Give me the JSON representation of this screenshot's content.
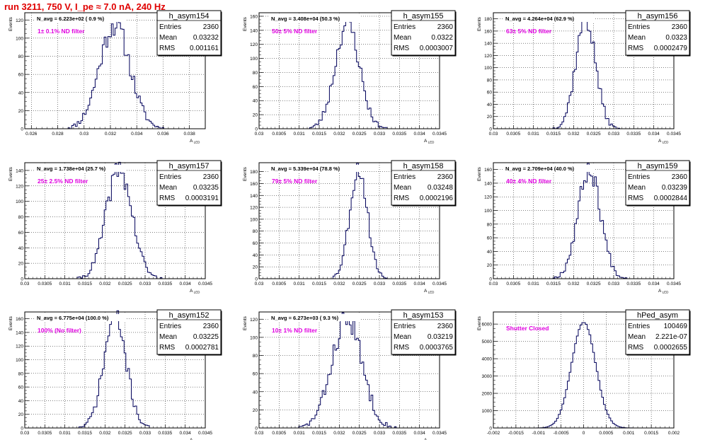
{
  "page": {
    "title": "run 3211,   750 V, I_pe ≈ 7.0 nA, 240 Hz"
  },
  "style": {
    "hist_color": "#00005a",
    "stats_box_fill": "#ffffff",
    "frame_color": "#000000",
    "filter_label_color": "#e000e0",
    "title_color": "#e00000",
    "grid": true
  },
  "chart_data": [
    {
      "type": "histogram",
      "hist_name": "h_asym154",
      "navg": "N_avg = 6.223e+02 ( 0.9 %)",
      "filter": "1± 0.1% ND filter",
      "entries": "2360",
      "mean": "0.03232",
      "rms": "0.001161",
      "ylabel": "Events",
      "xlabel": "A_LED",
      "xlim": [
        0.0255,
        0.0392
      ],
      "ylim": [
        0,
        128
      ],
      "xticks": [
        0.026,
        0.028,
        0.03,
        0.032,
        0.034,
        0.036,
        0.038
      ],
      "xtick_labels": [
        "0.026",
        "0.028",
        "0.03",
        "0.032",
        "0.034",
        "0.036",
        "0.038"
      ],
      "yticks": [
        0,
        20,
        40,
        60,
        80,
        100,
        120
      ],
      "ytick_labels": [
        "0",
        "20",
        "40",
        "60",
        "80",
        "100",
        "120"
      ],
      "mean_value": 0.03232,
      "sigma_value": 0.001161,
      "peak": 115,
      "seed": 11
    },
    {
      "type": "histogram",
      "hist_name": "h_asym155",
      "navg": "N_avg = 3.408e+04 (50.3 %)",
      "filter": "50± 5% ND filter",
      "entries": "2360",
      "mean": "0.0322",
      "rms": "0.0003007",
      "ylabel": "Events",
      "xlabel": "A_LED",
      "xlim": [
        0.03,
        0.0345
      ],
      "ylim": [
        0,
        165
      ],
      "xticks": [
        0.03,
        0.0305,
        0.031,
        0.0315,
        0.032,
        0.0325,
        0.033,
        0.0335,
        0.034,
        0.0345
      ],
      "xtick_labels": [
        "0.03",
        "0.0305",
        "0.031",
        "0.0315",
        "0.032",
        "0.0325",
        "0.033",
        "0.0335",
        "0.034",
        "0.0345"
      ],
      "yticks": [
        0,
        20,
        40,
        60,
        80,
        100,
        120,
        140,
        160
      ],
      "ytick_labels": [
        "0",
        "20",
        "40",
        "60",
        "80",
        "100",
        "120",
        "140",
        "160"
      ],
      "mean_value": 0.0322,
      "sigma_value": 0.0003007,
      "peak": 150,
      "seed": 23
    },
    {
      "type": "histogram",
      "hist_name": "h_asym156",
      "navg": "N_avg = 4.264e+04 (62.9 %)",
      "filter": "63± 5% ND filter",
      "entries": "2360",
      "mean": "0.0323",
      "rms": "0.0002479",
      "ylabel": "Events",
      "xlabel": "A_LED",
      "xlim": [
        0.03,
        0.0345
      ],
      "ylim": [
        0,
        190
      ],
      "xticks": [
        0.03,
        0.0305,
        0.031,
        0.0315,
        0.032,
        0.0325,
        0.033,
        0.0335,
        0.034,
        0.0345
      ],
      "xtick_labels": [
        "0.03",
        "0.0305",
        "0.031",
        "0.0315",
        "0.032",
        "0.0325",
        "0.033",
        "0.0335",
        "0.034",
        "0.0345"
      ],
      "yticks": [
        0,
        20,
        40,
        60,
        80,
        100,
        120,
        140,
        160,
        180
      ],
      "ytick_labels": [
        "0",
        "20",
        "40",
        "60",
        "80",
        "100",
        "120",
        "140",
        "160",
        "180"
      ],
      "mean_value": 0.0323,
      "sigma_value": 0.0002479,
      "peak": 180,
      "seed": 37
    },
    {
      "type": "histogram",
      "hist_name": "h_asym157",
      "navg": "N_avg = 1.738e+04 (25.7 %)",
      "filter": "25± 2.5% ND filter",
      "entries": "2360",
      "mean": "0.03235",
      "rms": "0.0003191",
      "ylabel": "Events",
      "xlabel": "A_LED",
      "xlim": [
        0.03,
        0.0345
      ],
      "ylim": [
        0,
        150
      ],
      "xticks": [
        0.03,
        0.0305,
        0.031,
        0.0315,
        0.032,
        0.0325,
        0.033,
        0.0335,
        0.034,
        0.0345
      ],
      "xtick_labels": [
        "0.03",
        "0.0305",
        "0.031",
        "0.0315",
        "0.032",
        "0.0325",
        "0.033",
        "0.0335",
        "0.034",
        "0.0345"
      ],
      "yticks": [
        0,
        20,
        40,
        60,
        80,
        100,
        120,
        140
      ],
      "ytick_labels": [
        "0",
        "20",
        "40",
        "60",
        "80",
        "100",
        "120",
        "140"
      ],
      "mean_value": 0.03235,
      "sigma_value": 0.0003191,
      "peak": 142,
      "seed": 41
    },
    {
      "type": "histogram",
      "hist_name": "h_asym158",
      "navg": "N_avg = 5.339e+04 (78.8 %)",
      "filter": "79± 5% ND filter",
      "entries": "2360",
      "mean": "0.03248",
      "rms": "0.0002196",
      "ylabel": "Events",
      "xlabel": "A_LED",
      "xlim": [
        0.03,
        0.0345
      ],
      "ylim": [
        0,
        195
      ],
      "xticks": [
        0.03,
        0.0305,
        0.031,
        0.0315,
        0.032,
        0.0325,
        0.033,
        0.0335,
        0.034,
        0.0345
      ],
      "xtick_labels": [
        "0.03",
        "0.0305",
        "0.031",
        "0.0315",
        "0.032",
        "0.0325",
        "0.033",
        "0.0335",
        "0.034",
        "0.0345"
      ],
      "yticks": [
        0,
        20,
        40,
        60,
        80,
        100,
        120,
        140,
        160,
        180
      ],
      "ytick_labels": [
        "0",
        "20",
        "40",
        "60",
        "80",
        "100",
        "120",
        "140",
        "160",
        "180"
      ],
      "mean_value": 0.03248,
      "sigma_value": 0.0002196,
      "peak": 185,
      "seed": 53
    },
    {
      "type": "histogram",
      "hist_name": "h_asym159",
      "navg": "N_avg = 2.709e+04 (40.0 %)",
      "filter": "40± 4% ND filter",
      "entries": "2360",
      "mean": "0.03239",
      "rms": "0.0002844",
      "ylabel": "Events",
      "xlabel": "A_LED",
      "xlim": [
        0.03,
        0.0345
      ],
      "ylim": [
        0,
        170
      ],
      "xticks": [
        0.03,
        0.0305,
        0.031,
        0.0315,
        0.032,
        0.0325,
        0.033,
        0.0335,
        0.034,
        0.0345
      ],
      "xtick_labels": [
        "0.03",
        "0.0305",
        "0.031",
        "0.0315",
        "0.032",
        "0.0325",
        "0.033",
        "0.0335",
        "0.034",
        "0.0345"
      ],
      "yticks": [
        0,
        20,
        40,
        60,
        80,
        100,
        120,
        140,
        160
      ],
      "ytick_labels": [
        "0",
        "20",
        "40",
        "60",
        "80",
        "100",
        "120",
        "140",
        "160"
      ],
      "mean_value": 0.03239,
      "sigma_value": 0.0002844,
      "peak": 160,
      "seed": 67
    },
    {
      "type": "histogram",
      "hist_name": "h_asym152",
      "navg": "N_avg = 6.775e+04 (100.0 %)",
      "filter": "100% (No filter)",
      "entries": "2360",
      "mean": "0.03225",
      "rms": "0.0002781",
      "ylabel": "Events",
      "xlabel": "A_LED",
      "xlim": [
        0.03,
        0.0345
      ],
      "ylim": [
        0,
        170
      ],
      "xticks": [
        0.03,
        0.0305,
        0.031,
        0.0315,
        0.032,
        0.0325,
        0.033,
        0.0335,
        0.034,
        0.0345
      ],
      "xtick_labels": [
        "0.03",
        "0.0305",
        "0.031",
        "0.0315",
        "0.032",
        "0.0325",
        "0.033",
        "0.0335",
        "0.034",
        "0.0345"
      ],
      "yticks": [
        0,
        20,
        40,
        60,
        80,
        100,
        120,
        140,
        160
      ],
      "ytick_labels": [
        "0",
        "20",
        "40",
        "60",
        "80",
        "100",
        "120",
        "140",
        "160"
      ],
      "mean_value": 0.03225,
      "sigma_value": 0.0002781,
      "peak": 162,
      "seed": 71
    },
    {
      "type": "histogram",
      "hist_name": "h_asym153",
      "navg": "N_avg = 6.273e+03 ( 9.3 %)",
      "filter": "10± 1% ND filter",
      "entries": "2360",
      "mean": "0.03219",
      "rms": "0.0003765",
      "ylabel": "Events",
      "xlabel": "A_LED",
      "xlim": [
        0.03,
        0.0345
      ],
      "ylim": [
        0,
        128
      ],
      "xticks": [
        0.03,
        0.0305,
        0.031,
        0.0315,
        0.032,
        0.0325,
        0.033,
        0.0335,
        0.034,
        0.0345
      ],
      "xtick_labels": [
        "0.03",
        "0.0305",
        "0.031",
        "0.0315",
        "0.032",
        "0.0325",
        "0.033",
        "0.0335",
        "0.034",
        "0.0345"
      ],
      "yticks": [
        0,
        20,
        40,
        60,
        80,
        100,
        120
      ],
      "ytick_labels": [
        "0",
        "20",
        "40",
        "60",
        "80",
        "100",
        "120"
      ],
      "mean_value": 0.03219,
      "sigma_value": 0.0003765,
      "peak": 120,
      "seed": 83
    },
    {
      "type": "histogram",
      "hist_name": "hPed_asym",
      "navg": "",
      "filter": "Shutter Closed",
      "entries": "100469",
      "mean": "2.221e-07",
      "rms": "0.0002655",
      "ylabel": "Events",
      "xlabel": "",
      "xlim": [
        -0.002,
        0.002
      ],
      "ylim": [
        0,
        6700
      ],
      "xticks": [
        -0.002,
        -0.0015,
        -0.001,
        -0.0005,
        0,
        0.0005,
        0.001,
        0.0015,
        0.002
      ],
      "xtick_labels": [
        "-0.002",
        "-0.0015",
        "-0.001",
        "-0.0005",
        "0",
        "0.0005",
        "0.001",
        "0.0015",
        "0.002"
      ],
      "yticks": [
        0,
        1000,
        2000,
        3000,
        4000,
        5000,
        6000
      ],
      "ytick_labels": [
        "0",
        "1000",
        "2000",
        "3000",
        "4000",
        "5000",
        "6000"
      ],
      "mean_value": 2.221e-07,
      "sigma_value": 0.0002655,
      "peak": 6150,
      "seed": 97
    }
  ]
}
